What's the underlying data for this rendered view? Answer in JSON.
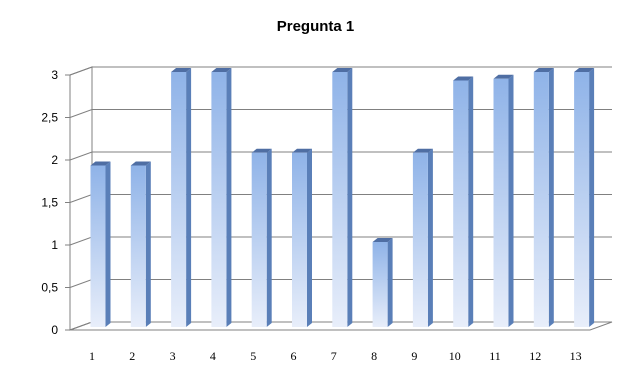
{
  "chart_data": {
    "type": "bar",
    "title": "Pregunta 1",
    "categories": [
      "1",
      "2",
      "3",
      "4",
      "5",
      "6",
      "7",
      "8",
      "9",
      "10",
      "11",
      "12",
      "13"
    ],
    "values": [
      1.9,
      1.9,
      3.0,
      3.0,
      2.05,
      2.05,
      3.0,
      1.0,
      2.05,
      2.9,
      2.92,
      3.0,
      3.0
    ],
    "ylim": [
      0,
      3
    ],
    "yticks": [
      "0",
      "0,5",
      "1",
      "1,5",
      "2",
      "2,5",
      "3"
    ],
    "grid": true,
    "legend": "none",
    "colors": {
      "bar_top": "#8fb3e8",
      "bar_bottom": "#e8eefa",
      "bar_side": "#5a7fb8",
      "bar_cap": "#4f6ea3",
      "gridline": "#808080",
      "wall": "#ffffff"
    }
  }
}
